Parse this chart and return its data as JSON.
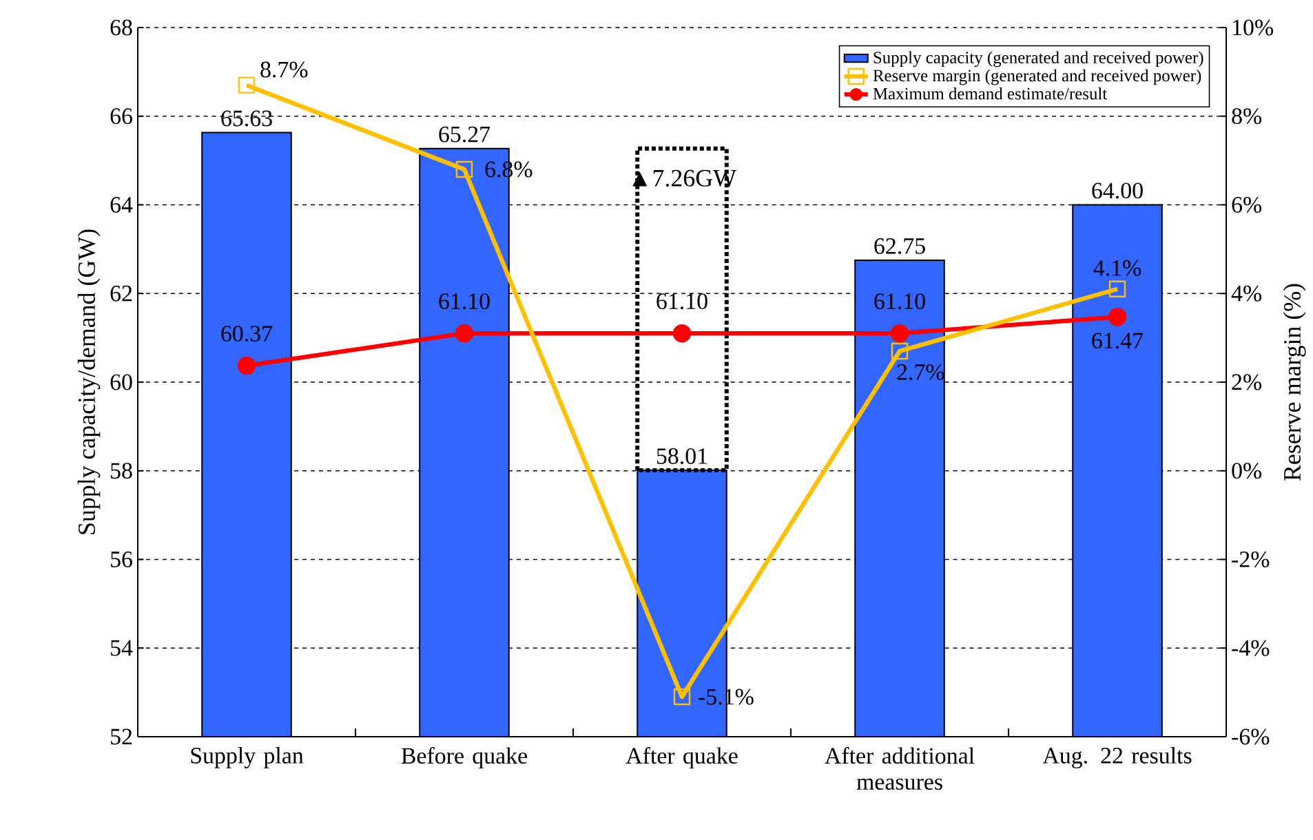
{
  "chart_data": {
    "type": "bar",
    "categories": [
      "Supply plan",
      "Before quake",
      "After quake",
      "After additional measures",
      "Aug. 22 results"
    ],
    "ylabel": "Supply capacity/demand (GW)",
    "y2label": "Reserve margin (%)",
    "ylim": [
      52,
      68
    ],
    "yticks": [
      52,
      54,
      56,
      58,
      60,
      62,
      64,
      66,
      68
    ],
    "y2lim": [
      -6,
      10
    ],
    "y2ticks": [
      {
        "value": -6,
        "label": "-6%"
      },
      {
        "value": -4,
        "label": "-4%"
      },
      {
        "value": -2,
        "label": "-2%"
      },
      {
        "value": 0,
        "label": "0%"
      },
      {
        "value": 2,
        "label": "2%"
      },
      {
        "value": 4,
        "label": "4%"
      },
      {
        "value": 6,
        "label": "6%"
      },
      {
        "value": 8,
        "label": "8%"
      },
      {
        "value": 10,
        "label": "10%"
      }
    ],
    "grid": "y",
    "legend": "top right",
    "annotations": [
      "▲7.26GW"
    ],
    "series": [
      {
        "name": "Supply capacity (generated and received power)",
        "color": "#3366ff",
        "values": [
          65.63,
          65.27,
          58.01,
          62.75,
          64.0
        ],
        "value_labels": [
          "65.63",
          "65.27",
          "58.01",
          "62.75",
          "64.00"
        ]
      },
      {
        "color": "#000000",
        "line_style": "dotted",
        "base": [
          null,
          null,
          58.01,
          null,
          null
        ],
        "values": [
          null,
          null,
          7.26,
          null,
          null
        ]
      },
      {
        "name": "Reserve margin (generated and received power)",
        "type": "line",
        "axis": "y2",
        "color": "#ffc000",
        "marker": "square",
        "values": [
          8.7,
          6.8,
          -5.1,
          2.7,
          4.1
        ],
        "value_labels": [
          "8.7%",
          "6.8%",
          "-5.1%",
          "2.7%",
          "4.1%"
        ]
      },
      {
        "name": "Maximum demand estimate/result",
        "type": "line",
        "color": "#ff0000",
        "marker": "circle",
        "values": [
          60.37,
          61.1,
          61.1,
          61.1,
          61.47
        ],
        "value_labels": [
          "60.37",
          "61.10",
          "61.10",
          "61.10",
          "61.47"
        ]
      }
    ]
  }
}
